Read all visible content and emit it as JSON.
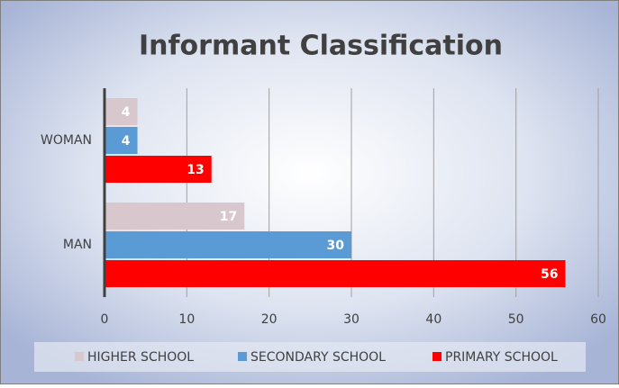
{
  "chart_data": {
    "type": "hbar",
    "title": "Informant Classification",
    "categories": [
      "MAN",
      "WOMAN"
    ],
    "series": [
      {
        "name": "HIGHER SCHOOL",
        "color": "#d8c8ce",
        "values": [
          17,
          4
        ]
      },
      {
        "name": "SECONDARY SCHOOL",
        "color": "#5b9bd5",
        "values": [
          30,
          4
        ]
      },
      {
        "name": "PRIMARY SCHOOL",
        "color": "#ff0000",
        "values": [
          56,
          13
        ]
      }
    ],
    "xlim": [
      0,
      60
    ],
    "xticks": [
      0,
      10,
      20,
      30,
      40,
      50,
      60
    ],
    "grid": true,
    "legend": "bottom"
  }
}
